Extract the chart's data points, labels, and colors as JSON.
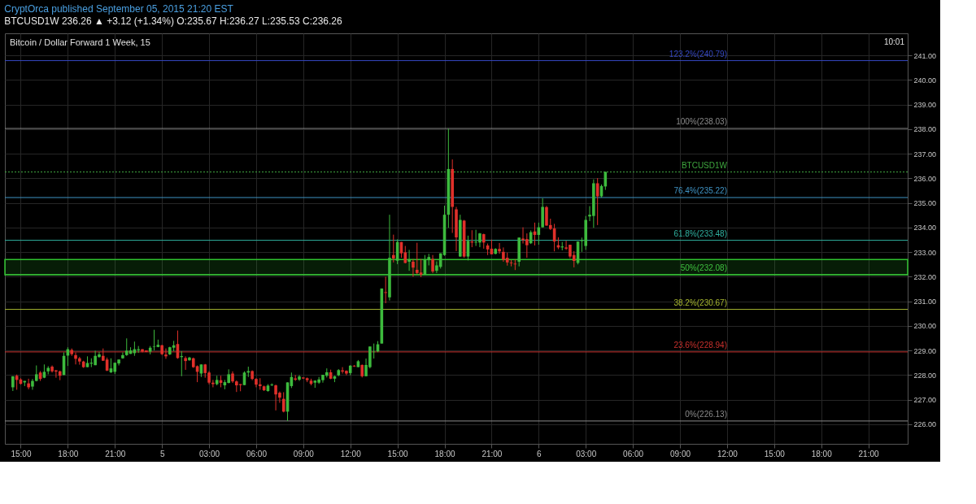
{
  "chart_data": {
    "type": "candlestick",
    "title": "Bitcoin / Dollar Forward 1 Week, 15",
    "subtitle": "BTCUSD1W  236.26 ▲ +3.12 (+1.34%)  O:235.67  H:236.27  L:235.53  C:236.26",
    "annotations": [
      "CryptOrca published September 05, 2015 21:20 EST",
      "10:01"
    ],
    "x": [
      "2015-09-04T14:30",
      "2015-09-04T14:45",
      "2015-09-04T15:00",
      "2015-09-04T15:15",
      "2015-09-04T15:30",
      "2015-09-04T15:45",
      "2015-09-04T16:00",
      "2015-09-04T16:15",
      "2015-09-04T16:30",
      "2015-09-04T16:45",
      "2015-09-04T17:00",
      "2015-09-04T17:15",
      "2015-09-04T17:30",
      "2015-09-04T17:45",
      "2015-09-04T18:00",
      "2015-09-04T18:15",
      "2015-09-04T18:30",
      "2015-09-04T18:45",
      "2015-09-04T19:00",
      "2015-09-04T19:15",
      "2015-09-04T19:30",
      "2015-09-04T19:45",
      "2015-09-04T20:00",
      "2015-09-04T20:15",
      "2015-09-04T20:30",
      "2015-09-04T20:45",
      "2015-09-04T21:00",
      "2015-09-04T21:15",
      "2015-09-04T21:30",
      "2015-09-04T21:45",
      "2015-09-04T22:00",
      "2015-09-04T22:15",
      "2015-09-04T22:30",
      "2015-09-04T22:45",
      "2015-09-04T23:00",
      "2015-09-04T23:15",
      "2015-09-04T23:30",
      "2015-09-04T23:45",
      "2015-09-05T00:00",
      "2015-09-05T00:15",
      "2015-09-05T00:30",
      "2015-09-05T00:45",
      "2015-09-05T01:00",
      "2015-09-05T01:15",
      "2015-09-05T01:30",
      "2015-09-05T01:45",
      "2015-09-05T02:00",
      "2015-09-05T02:15",
      "2015-09-05T02:30",
      "2015-09-05T02:45",
      "2015-09-05T03:00",
      "2015-09-05T03:15",
      "2015-09-05T03:30",
      "2015-09-05T03:45",
      "2015-09-05T04:00",
      "2015-09-05T04:15",
      "2015-09-05T04:30",
      "2015-09-05T04:45",
      "2015-09-05T05:00",
      "2015-09-05T05:15",
      "2015-09-05T05:30",
      "2015-09-05T05:45",
      "2015-09-05T06:00",
      "2015-09-05T06:15",
      "2015-09-05T06:30",
      "2015-09-05T06:45",
      "2015-09-05T07:00",
      "2015-09-05T07:15",
      "2015-09-05T07:30",
      "2015-09-05T07:45",
      "2015-09-05T08:00",
      "2015-09-05T08:15",
      "2015-09-05T08:30",
      "2015-09-05T08:45",
      "2015-09-05T09:00",
      "2015-09-05T09:15",
      "2015-09-05T09:30",
      "2015-09-05T09:45",
      "2015-09-05T10:00",
      "2015-09-05T10:15",
      "2015-09-05T10:30",
      "2015-09-05T10:45",
      "2015-09-05T11:00",
      "2015-09-05T11:15",
      "2015-09-05T11:30",
      "2015-09-05T11:45",
      "2015-09-05T12:00",
      "2015-09-05T12:15",
      "2015-09-05T12:30",
      "2015-09-05T12:45",
      "2015-09-05T13:00",
      "2015-09-05T13:15",
      "2015-09-05T13:30",
      "2015-09-05T13:45",
      "2015-09-05T14:00",
      "2015-09-05T14:15",
      "2015-09-05T14:30",
      "2015-09-05T14:45",
      "2015-09-05T15:00",
      "2015-09-05T15:15",
      "2015-09-05T15:30",
      "2015-09-05T15:45",
      "2015-09-05T16:00",
      "2015-09-05T16:15",
      "2015-09-05T16:30",
      "2015-09-05T16:45",
      "2015-09-05T17:00",
      "2015-09-05T17:15",
      "2015-09-05T17:30",
      "2015-09-05T17:45",
      "2015-09-05T18:00",
      "2015-09-05T18:15",
      "2015-09-05T18:30",
      "2015-09-05T18:45",
      "2015-09-05T19:00",
      "2015-09-05T19:15",
      "2015-09-05T19:30",
      "2015-09-05T19:45",
      "2015-09-05T20:00",
      "2015-09-05T20:15",
      "2015-09-05T20:30",
      "2015-09-05T20:45",
      "2015-09-05T21:00",
      "2015-09-05T21:15",
      "2015-09-05T21:30",
      "2015-09-05T21:45",
      "2015-09-05T22:00",
      "2015-09-05T22:15",
      "2015-09-05T22:30",
      "2015-09-05T22:45",
      "2015-09-05T23:00",
      "2015-09-05T23:15",
      "2015-09-05T23:30",
      "2015-09-05T23:45",
      "2015-09-06T00:00",
      "2015-09-06T00:15",
      "2015-09-06T00:30",
      "2015-09-06T00:45",
      "2015-09-06T01:00",
      "2015-09-06T01:15",
      "2015-09-06T01:30",
      "2015-09-06T01:45",
      "2015-09-06T02:00",
      "2015-09-06T02:15",
      "2015-09-06T02:30",
      "2015-09-06T02:45",
      "2015-09-06T03:00",
      "2015-09-06T03:15",
      "2015-09-06T03:30",
      "2015-09-06T03:45",
      "2015-09-06T04:00",
      "2015-09-06T04:15"
    ],
    "ohlc": [
      [
        227.5,
        227.95,
        227.35,
        227.95
      ],
      [
        227.97,
        228.02,
        227.4,
        227.8
      ],
      [
        227.82,
        227.87,
        227.61,
        227.64
      ],
      [
        227.7,
        227.76,
        227.55,
        227.76
      ],
      [
        227.66,
        227.85,
        227.42,
        227.5
      ],
      [
        227.53,
        227.84,
        227.4,
        227.76
      ],
      [
        227.76,
        228.39,
        227.74,
        228.03
      ],
      [
        228.1,
        228.16,
        227.76,
        227.84
      ],
      [
        227.89,
        228.43,
        227.87,
        228.13
      ],
      [
        228.15,
        228.36,
        228.03,
        228.29
      ],
      [
        228.34,
        228.39,
        228.1,
        228.15
      ],
      [
        228.19,
        228.2,
        227.89,
        228.14
      ],
      [
        228.15,
        228.18,
        227.79,
        227.97
      ],
      [
        228.0,
        228.92,
        228.0,
        228.78
      ],
      [
        228.79,
        229.13,
        228.37,
        229.05
      ],
      [
        229.02,
        229.08,
        228.78,
        228.85
      ],
      [
        228.81,
        228.92,
        228.43,
        228.66
      ],
      [
        228.68,
        228.74,
        228.42,
        228.55
      ],
      [
        228.55,
        228.58,
        228.29,
        228.32
      ],
      [
        228.32,
        228.76,
        228.32,
        228.49
      ],
      [
        228.46,
        228.68,
        228.32,
        228.5
      ],
      [
        228.4,
        228.99,
        228.4,
        228.78
      ],
      [
        228.73,
        228.94,
        228.71,
        228.84
      ],
      [
        228.78,
        229.08,
        228.58,
        228.58
      ],
      [
        228.63,
        228.71,
        228.16,
        228.18
      ],
      [
        228.11,
        228.68,
        228.08,
        228.27
      ],
      [
        228.13,
        228.5,
        228.04,
        228.5
      ],
      [
        228.47,
        228.63,
        228.39,
        228.63
      ],
      [
        228.68,
        228.92,
        228.66,
        228.81
      ],
      [
        228.81,
        229.49,
        228.78,
        228.99
      ],
      [
        228.86,
        229.13,
        228.86,
        229.0
      ],
      [
        228.89,
        229.36,
        228.78,
        229.05
      ],
      [
        229.01,
        229.18,
        228.9,
        229.05
      ],
      [
        229.05,
        229.05,
        228.92,
        228.95
      ],
      [
        229.0,
        229.0,
        228.93,
        228.94
      ],
      [
        228.95,
        229.18,
        228.84,
        229.11
      ],
      [
        229.14,
        229.84,
        229.0,
        229.16
      ],
      [
        229.14,
        229.44,
        229.13,
        229.23
      ],
      [
        229.21,
        229.23,
        228.81,
        228.85
      ],
      [
        228.83,
        229.08,
        228.66,
        228.76
      ],
      [
        228.84,
        229.15,
        228.81,
        229.13
      ],
      [
        229.11,
        229.39,
        228.97,
        229.21
      ],
      [
        229.26,
        229.81,
        228.66,
        228.69
      ],
      [
        228.73,
        228.97,
        227.95,
        228.77
      ],
      [
        228.69,
        228.76,
        228.21,
        228.57
      ],
      [
        228.6,
        228.74,
        228.58,
        228.71
      ],
      [
        228.68,
        228.71,
        228.29,
        228.32
      ],
      [
        228.36,
        228.39,
        227.71,
        228.13
      ],
      [
        228.06,
        228.43,
        227.92,
        228.43
      ],
      [
        228.43,
        228.45,
        227.89,
        228.08
      ],
      [
        228.1,
        228.16,
        227.62,
        227.69
      ],
      [
        227.69,
        227.8,
        227.5,
        227.63
      ],
      [
        227.63,
        227.97,
        227.58,
        227.8
      ],
      [
        227.79,
        227.97,
        227.5,
        227.68
      ],
      [
        227.58,
        227.8,
        227.42,
        227.71
      ],
      [
        227.68,
        228.23,
        227.66,
        228.03
      ],
      [
        228.06,
        228.15,
        227.68,
        227.74
      ],
      [
        227.74,
        227.78,
        227.31,
        227.58
      ],
      [
        227.63,
        227.63,
        227.34,
        227.59
      ],
      [
        227.59,
        228.15,
        227.59,
        228.1
      ],
      [
        228.1,
        228.34,
        227.92,
        228.16
      ],
      [
        228.16,
        228.19,
        227.79,
        227.84
      ],
      [
        227.84,
        227.87,
        227.5,
        227.61
      ],
      [
        227.62,
        227.87,
        227.4,
        227.55
      ],
      [
        227.54,
        227.57,
        227.35,
        227.38
      ],
      [
        227.35,
        227.63,
        227.32,
        227.57
      ],
      [
        227.58,
        227.66,
        227.55,
        227.61
      ],
      [
        227.58,
        227.61,
        226.56,
        227.21
      ],
      [
        227.28,
        227.33,
        226.87,
        227.08
      ],
      [
        227.03,
        227.3,
        226.48,
        226.51
      ],
      [
        226.51,
        227.7,
        226.13,
        227.7
      ],
      [
        227.55,
        228.1,
        227.47,
        227.92
      ],
      [
        227.86,
        228.0,
        227.76,
        227.81
      ],
      [
        227.81,
        228.0,
        227.76,
        227.94
      ],
      [
        227.9,
        227.9,
        227.84,
        227.86
      ],
      [
        227.87,
        227.9,
        227.71,
        227.79
      ],
      [
        227.77,
        227.85,
        227.58,
        227.64
      ],
      [
        227.69,
        227.79,
        227.48,
        227.77
      ],
      [
        227.69,
        227.92,
        227.64,
        227.82
      ],
      [
        227.79,
        228.01,
        227.69,
        228.01
      ],
      [
        227.97,
        228.27,
        227.9,
        228.11
      ],
      [
        228.11,
        228.22,
        227.83,
        227.85
      ],
      [
        227.85,
        227.97,
        227.71,
        227.95
      ],
      [
        227.99,
        228.24,
        227.95,
        228.2
      ],
      [
        228.19,
        228.32,
        228.06,
        228.14
      ],
      [
        228.17,
        228.19,
        227.99,
        228.06
      ],
      [
        228.08,
        228.4,
        227.99,
        228.38
      ],
      [
        228.38,
        228.4,
        228.33,
        228.35
      ],
      [
        228.32,
        228.61,
        228.32,
        228.56
      ],
      [
        228.41,
        228.43,
        227.9,
        227.95
      ],
      [
        227.95,
        228.67,
        227.95,
        228.41
      ],
      [
        228.32,
        229.16,
        228.27,
        229.16
      ],
      [
        228.93,
        229.28,
        228.67,
        228.95
      ],
      [
        228.96,
        229.38,
        228.93,
        229.25
      ],
      [
        229.28,
        231.52,
        229.28,
        231.52
      ],
      [
        231.37,
        232.0,
        230.92,
        231.34
      ],
      [
        231.16,
        234.52,
        231.03,
        232.77
      ],
      [
        232.88,
        233.71,
        232.58,
        232.74
      ],
      [
        232.65,
        233.52,
        232.51,
        233.41
      ],
      [
        233.41,
        233.41,
        232.77,
        232.95
      ],
      [
        232.99,
        233.25,
        232.54,
        232.56
      ],
      [
        232.61,
        233.09,
        232.24,
        232.7
      ],
      [
        232.61,
        232.72,
        232.0,
        232.37
      ],
      [
        232.28,
        233.38,
        232.1,
        232.15
      ],
      [
        232.17,
        232.72,
        231.98,
        232.08
      ],
      [
        232.08,
        232.88,
        232.08,
        232.69
      ],
      [
        232.67,
        232.93,
        232.46,
        232.8
      ],
      [
        232.72,
        232.88,
        232.14,
        232.21
      ],
      [
        232.24,
        232.62,
        232.15,
        232.46
      ],
      [
        232.4,
        232.95,
        232.33,
        232.95
      ],
      [
        232.88,
        234.89,
        232.85,
        234.52
      ],
      [
        234.52,
        238.02,
        233.99,
        236.38
      ],
      [
        236.38,
        236.77,
        233.78,
        234.84
      ],
      [
        234.74,
        234.84,
        233.04,
        233.6
      ],
      [
        232.82,
        234.52,
        232.8,
        234.31
      ],
      [
        234.28,
        234.31,
        232.77,
        232.82
      ],
      [
        232.82,
        233.67,
        232.66,
        233.46
      ],
      [
        233.43,
        233.89,
        233.2,
        233.39
      ],
      [
        233.39,
        233.91,
        233.25,
        233.42
      ],
      [
        233.39,
        233.78,
        233.2,
        233.76
      ],
      [
        233.73,
        233.75,
        233.14,
        233.39
      ],
      [
        233.27,
        233.35,
        232.88,
        233.11
      ],
      [
        233.14,
        233.51,
        232.91,
        232.91
      ],
      [
        232.93,
        233.16,
        232.91,
        233.13
      ],
      [
        233.13,
        233.37,
        232.93,
        233.03
      ],
      [
        233.01,
        233.19,
        232.61,
        232.69
      ],
      [
        232.77,
        232.98,
        232.45,
        232.58
      ],
      [
        232.58,
        232.68,
        232.42,
        232.55
      ],
      [
        232.53,
        232.71,
        232.27,
        232.5
      ],
      [
        232.61,
        233.59,
        232.42,
        233.59
      ],
      [
        233.55,
        234.01,
        233.35,
        233.49
      ],
      [
        233.53,
        233.76,
        232.77,
        233.28
      ],
      [
        233.36,
        233.88,
        233.33,
        233.81
      ],
      [
        233.84,
        234.2,
        233.27,
        233.7
      ],
      [
        233.7,
        234.2,
        233.3,
        234.01
      ],
      [
        234.01,
        235.19,
        234.0,
        234.84
      ],
      [
        234.83,
        234.88,
        234.07,
        234.08
      ],
      [
        234.1,
        234.36,
        233.9,
        233.94
      ],
      [
        233.96,
        234.15,
        233.03,
        233.43
      ],
      [
        233.28,
        233.6,
        233.12,
        233.19
      ],
      [
        233.19,
        233.41,
        233.07,
        233.23
      ],
      [
        233.19,
        233.46,
        233.09,
        233.14
      ],
      [
        233.3,
        233.3,
        232.75,
        232.82
      ],
      [
        232.88,
        233.04,
        232.38,
        232.64
      ],
      [
        232.56,
        233.43,
        232.5,
        233.43
      ],
      [
        233.45,
        233.59,
        233.01,
        233.49
      ],
      [
        233.25,
        234.47,
        233.09,
        234.31
      ],
      [
        234.45,
        234.87,
        234.26,
        234.52
      ],
      [
        234.47,
        235.96,
        233.99,
        235.8
      ],
      [
        235.8,
        236.01,
        234.1,
        235.27
      ],
      [
        235.27,
        235.75,
        235.22,
        235.69
      ],
      [
        235.67,
        236.27,
        235.53,
        236.26
      ]
    ],
    "colors": [
      "#3dba3d",
      "#e0302a",
      "#e0302a",
      "#3dba3d",
      "#e0302a",
      "#3dba3d",
      "#3dba3d",
      "#e0302a",
      "#3dba3d",
      "#3dba3d",
      "#e0302a",
      "#e0302a",
      "#e0302a",
      "#3dba3d",
      "#3dba3d",
      "#e0302a",
      "#e0302a",
      "#e0302a",
      "#e0302a",
      "#3dba3d",
      "#3dba3d",
      "#3dba3d",
      "#3dba3d",
      "#e0302a",
      "#e0302a",
      "#3dba3d",
      "#3dba3d",
      "#3dba3d",
      "#3dba3d",
      "#3dba3d",
      "#3dba3d",
      "#3dba3d",
      "#3dba3d",
      "#e0302a",
      "#e0302a",
      "#3dba3d",
      "#3dba3d",
      "#3dba3d",
      "#e0302a",
      "#e0302a",
      "#3dba3d",
      "#3dba3d",
      "#e0302a",
      "#3dba3d",
      "#e0302a",
      "#3dba3d",
      "#e0302a",
      "#e0302a",
      "#3dba3d",
      "#e0302a",
      "#e0302a",
      "#e0302a",
      "#3dba3d",
      "#e0302a",
      "#3dba3d",
      "#3dba3d",
      "#e0302a",
      "#e0302a",
      "#e0302a",
      "#3dba3d",
      "#3dba3d",
      "#e0302a",
      "#e0302a",
      "#e0302a",
      "#e0302a",
      "#3dba3d",
      "#3dba3d",
      "#e0302a",
      "#e0302a",
      "#e0302a",
      "#3dba3d",
      "#3dba3d",
      "#e0302a",
      "#3dba3d",
      "#e0302a",
      "#e0302a",
      "#e0302a",
      "#3dba3d",
      "#3dba3d",
      "#3dba3d",
      "#3dba3d",
      "#e0302a",
      "#3dba3d",
      "#3dba3d",
      "#e0302a",
      "#e0302a",
      "#3dba3d",
      "#e0302a",
      "#3dba3d",
      "#e0302a",
      "#3dba3d",
      "#3dba3d",
      "#3dba3d",
      "#3dba3d",
      "#3dba3d",
      "#e0302a",
      "#3dba3d",
      "#e0302a",
      "#3dba3d",
      "#e0302a",
      "#e0302a",
      "#3dba3d",
      "#e0302a",
      "#e0302a",
      "#e0302a",
      "#3dba3d",
      "#3dba3d",
      "#e0302a",
      "#3dba3d",
      "#3dba3d",
      "#3dba3d",
      "#3dba3d",
      "#e0302a",
      "#e0302a",
      "#3dba3d",
      "#e0302a",
      "#3dba3d",
      "#e0302a",
      "#3dba3d",
      "#3dba3d",
      "#e0302a",
      "#e0302a",
      "#e0302a",
      "#3dba3d",
      "#e0302a",
      "#e0302a",
      "#e0302a",
      "#e0302a",
      "#e0302a",
      "#3dba3d",
      "#e0302a",
      "#e0302a",
      "#3dba3d",
      "#e0302a",
      "#3dba3d",
      "#3dba3d",
      "#e0302a",
      "#e0302a",
      "#e0302a",
      "#e0302a",
      "#3dba3d",
      "#e0302a",
      "#e0302a",
      "#e0302a",
      "#3dba3d",
      "#3dba3d",
      "#3dba3d",
      "#3dba3d",
      "#3dba3d",
      "#e0302a",
      "#3dba3d",
      "#3dba3d"
    ],
    "xlim": [
      "2015-09-04T14:15",
      "2015-09-06T23:15"
    ],
    "xticks": [
      {
        "value": "2015-09-04T15:00",
        "label": "15:00"
      },
      {
        "value": "2015-09-04T18:00",
        "label": "18:00"
      },
      {
        "value": "2015-09-04T21:00",
        "label": "21:00"
      },
      {
        "value": "2015-09-05T00:00",
        "label": "5"
      },
      {
        "value": "2015-09-05T03:00",
        "label": "03:00"
      },
      {
        "value": "2015-09-05T06:00",
        "label": "06:00"
      },
      {
        "value": "2015-09-05T09:00",
        "label": "09:00"
      },
      {
        "value": "2015-09-05T12:00",
        "label": "12:00"
      },
      {
        "value": "2015-09-05T15:00",
        "label": "15:00"
      },
      {
        "value": "2015-09-05T18:00",
        "label": "18:00"
      },
      {
        "value": "2015-09-05T21:00",
        "label": "21:00"
      },
      {
        "value": "2015-09-06T00:00",
        "label": "6"
      },
      {
        "value": "2015-09-06T03:00",
        "label": "03:00"
      },
      {
        "value": "2015-09-06T06:00",
        "label": "06:00"
      },
      {
        "value": "2015-09-06T09:00",
        "label": "09:00"
      },
      {
        "value": "2015-09-06T12:00",
        "label": "12:00"
      },
      {
        "value": "2015-09-06T15:00",
        "label": "15:00"
      },
      {
        "value": "2015-09-06T18:00",
        "label": "18:00"
      },
      {
        "value": "2015-09-06T21:00",
        "label": "21:00"
      }
    ],
    "ylim": [
      225.2,
      241.9
    ],
    "yticks": [
      {
        "value": 226,
        "label": "226.00"
      },
      {
        "value": 227,
        "label": "227.00"
      },
      {
        "value": 228,
        "label": "228.00"
      },
      {
        "value": 229,
        "label": "229.00"
      },
      {
        "value": 230,
        "label": "230.00"
      },
      {
        "value": 231,
        "label": "231.00"
      },
      {
        "value": 232,
        "label": "232.00"
      },
      {
        "value": 233,
        "label": "233.00"
      },
      {
        "value": 234,
        "label": "234.00"
      },
      {
        "value": 235,
        "label": "235.00"
      },
      {
        "value": 236,
        "label": "236.00"
      },
      {
        "value": 237,
        "label": "237.00"
      },
      {
        "value": 238,
        "label": "238.00"
      },
      {
        "value": 239,
        "label": "239.00"
      },
      {
        "value": 240,
        "label": "240.00"
      },
      {
        "value": 241,
        "label": "241.00"
      }
    ],
    "ref_lines": [
      {
        "axis": "y",
        "value": 240.79,
        "label": "123.2%(240.79)",
        "color": "#3547c0"
      },
      {
        "axis": "y",
        "value": 238.03,
        "label": "100%(238.03)",
        "color": "#8a8a8a"
      },
      {
        "axis": "y",
        "value": 235.22,
        "label": "76.4%(235.22)",
        "color": "#3f93c4"
      },
      {
        "axis": "y",
        "value": 233.48,
        "label": "61.8%(233.48)",
        "color": "#2fb09f"
      },
      {
        "axis": "y",
        "value": 232.08,
        "label": "50%(232.08)",
        "color": "#3fc03f"
      },
      {
        "axis": "y",
        "value": 230.67,
        "label": "38.2%(230.67)",
        "color": "#a8b830"
      },
      {
        "axis": "y",
        "value": 228.94,
        "label": "23.6%(228.94)",
        "color": "#c8302c"
      },
      {
        "axis": "y",
        "value": 226.13,
        "label": "0%(226.13)",
        "color": "#8a8a8a"
      },
      {
        "axis": "y",
        "value": 236.26,
        "label": "BTCUSD1W",
        "color": "#3fa83f",
        "line_style": "dotted"
      }
    ],
    "bands": [
      {
        "axis": "y",
        "from": 232.08,
        "to": 232.7,
        "color": "#2fc02f"
      }
    ],
    "grid": true
  }
}
